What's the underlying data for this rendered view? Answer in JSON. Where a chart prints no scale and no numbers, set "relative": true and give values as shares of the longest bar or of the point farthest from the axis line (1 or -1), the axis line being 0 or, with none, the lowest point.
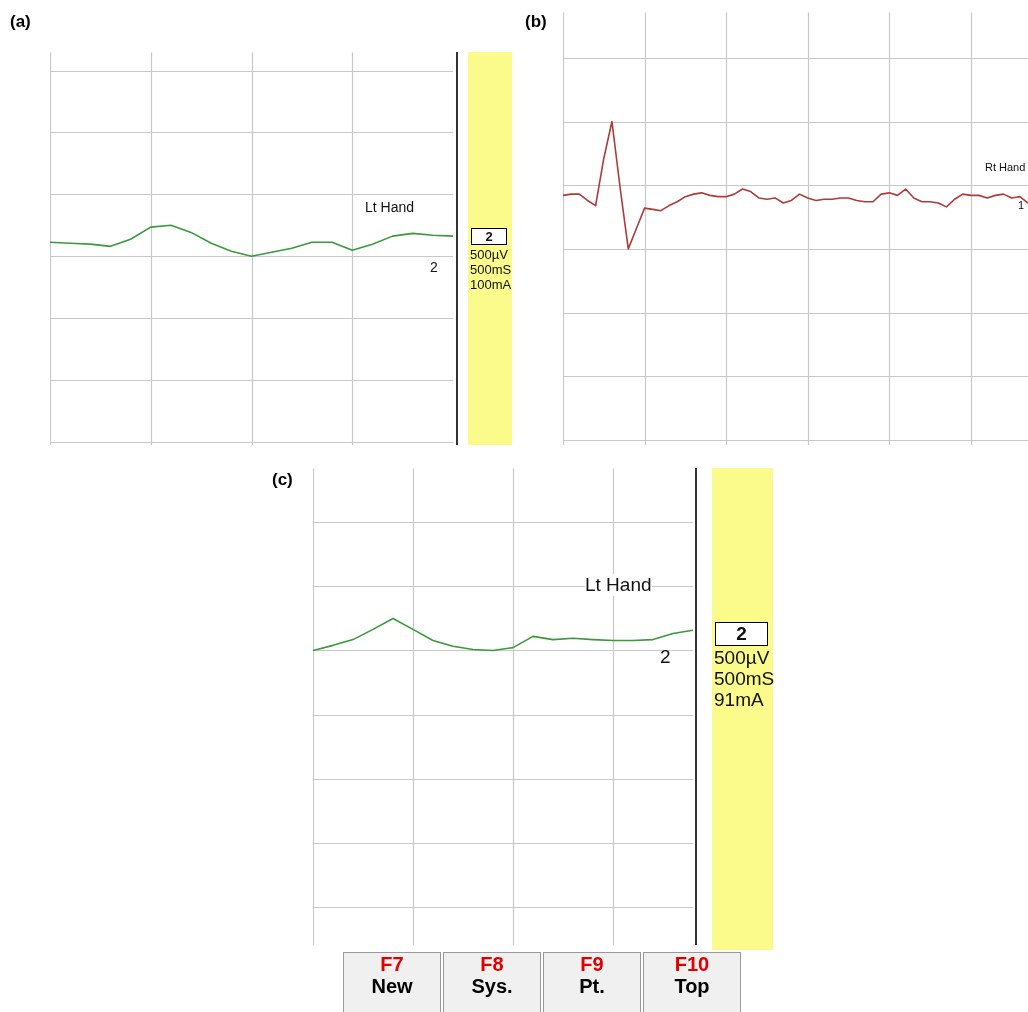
{
  "chart_data": [
    {
      "type": "line",
      "title": "(a)",
      "relative": true,
      "grid": true,
      "categories": [
        null,
        null,
        null,
        null,
        null,
        null,
        null,
        null,
        null,
        null,
        null,
        null,
        null,
        null,
        null,
        null,
        null,
        null,
        null,
        null,
        null
      ],
      "series": [
        {
          "color": "#3a9a3a",
          "values": [
            0.45,
            0.42,
            0.39,
            0.32,
            0.55,
            0.94,
            1.0,
            0.77,
            0.42,
            0.16,
            0,
            0.13,
            0.26,
            0.45,
            0.45,
            0.19,
            0.39,
            0.65,
            0.74,
            0.68,
            0.65
          ]
        }
      ],
      "annotations": [
        "Lt Hand",
        "2",
        "2",
        "500µV",
        "500mS",
        "100mA"
      ]
    },
    {
      "type": "line",
      "title": "(b)",
      "relative": true,
      "grid": true,
      "categories": [
        null,
        null,
        null,
        null,
        null,
        null,
        null,
        null,
        null,
        null,
        null,
        null,
        null,
        null,
        null,
        null,
        null,
        null,
        null,
        null,
        null,
        null,
        null,
        null,
        null,
        null,
        null,
        null,
        null,
        null,
        null,
        null,
        null,
        null,
        null,
        null,
        null,
        null,
        null,
        null,
        null,
        null,
        null,
        null,
        null,
        null,
        null,
        null,
        null,
        null,
        null,
        null,
        null,
        null,
        null,
        null,
        null,
        null
      ],
      "series": [
        {
          "color": "#b03a3a",
          "values": [
            0.42,
            0.43,
            0.43,
            0.38,
            0.34,
            0.71,
            1.0,
            0.48,
            0,
            0.16,
            0.32,
            0.31,
            0.3,
            0.34,
            0.37,
            0.41,
            0.43,
            0.44,
            0.42,
            0.41,
            0.41,
            0.43,
            0.47,
            0.45,
            0.4,
            0.39,
            0.4,
            0.36,
            0.38,
            0.43,
            0.4,
            0.38,
            0.39,
            0.39,
            0.4,
            0.4,
            0.38,
            0.37,
            0.37,
            0.43,
            0.44,
            0.42,
            0.47,
            0.4,
            0.37,
            0.37,
            0.36,
            0.33,
            0.39,
            0.43,
            0.42,
            0.42,
            0.4,
            0.42,
            0.43,
            0.4,
            0.41,
            0.36
          ]
        }
      ],
      "annotations": [
        "Rt Hand",
        "1"
      ]
    },
    {
      "type": "line",
      "title": "(c)",
      "relative": true,
      "grid": true,
      "categories": [
        null,
        null,
        null,
        null,
        null,
        null,
        null,
        null,
        null,
        null,
        null,
        null,
        null,
        null,
        null,
        null,
        null,
        null,
        null,
        null
      ],
      "series": [
        {
          "color": "#3a9a3a",
          "values": [
            0,
            0.16,
            0.34,
            0.66,
            1.0,
            0.66,
            0.31,
            0.13,
            0.03,
            0,
            0.09,
            0.44,
            0.34,
            0.38,
            0.34,
            0.31,
            0.31,
            0.34,
            0.53,
            0.63
          ]
        }
      ],
      "annotations": [
        "Lt Hand",
        "2",
        "2",
        "500µV",
        "500mS",
        "91mA",
        "F7",
        "New",
        "F8",
        "Sys.",
        "F9",
        "Pt.",
        "F10",
        "Top"
      ]
    }
  ]
}
